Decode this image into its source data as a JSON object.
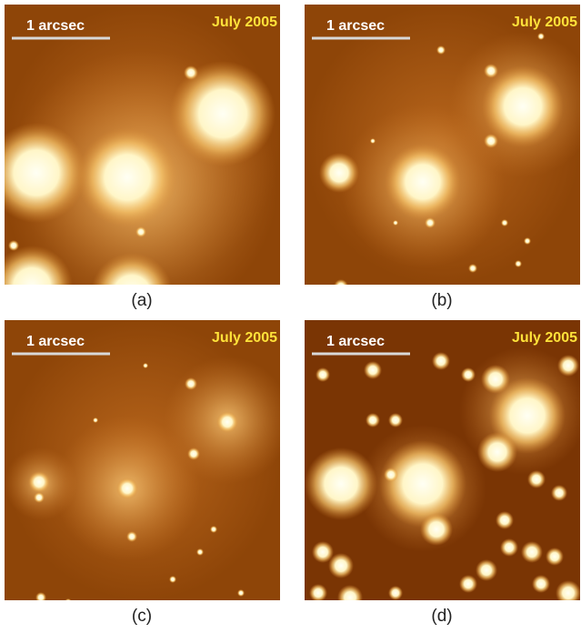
{
  "panels": [
    {
      "label": "(a)",
      "scale_bar": "1 arcsec",
      "date": "July 2005"
    },
    {
      "label": "(b)",
      "scale_bar": "1 arcsec",
      "date": "July 2005"
    },
    {
      "label": "(c)",
      "scale_bar": "1 arcsec",
      "date": "July 2005"
    },
    {
      "label": "(d)",
      "scale_bar": "1 arcsec",
      "date": "July 2005"
    }
  ]
}
